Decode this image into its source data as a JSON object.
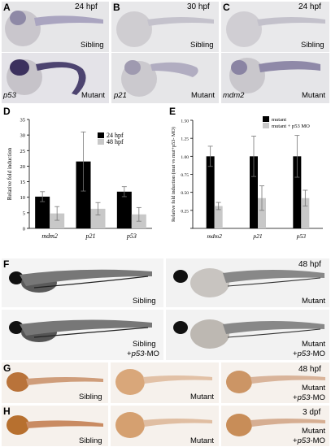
{
  "panel_letters": {
    "A": "A",
    "B": "B",
    "C": "C",
    "D": "D",
    "E": "E",
    "F": "F",
    "G": "G",
    "H": "H"
  },
  "A": {
    "top_time": "24 hpf",
    "top_label": "Sibling",
    "bottom_label": "Mutant",
    "gene": "p53"
  },
  "B": {
    "top_time": "30 hpf",
    "top_label": "Sibling",
    "bottom_label": "Mutant",
    "gene": "p21"
  },
  "C": {
    "top_time": "24 hpf",
    "top_label": "Sibling",
    "bottom_label": "Mutant",
    "gene": "mdm2"
  },
  "F": {
    "time": "48 hpf",
    "l1": "Sibling",
    "l2": "Mutant",
    "l3a": "Sibling",
    "l3b": "+p53-MO",
    "l4a": "Mutant",
    "l4b": "+p53-MO"
  },
  "G": {
    "time": "48 hpf",
    "l1": "Sibling",
    "l2": "Mutant",
    "l3a": "Mutant",
    "l3b": "+p53-MO"
  },
  "H": {
    "time": "3 dpf",
    "l1": "Sibling",
    "l2": "Mutant",
    "l3a": "Mutant",
    "l3b": "+p53-MO"
  },
  "chart_data": [
    {
      "type": "bar",
      "ylabel": "Relative fold induction",
      "categories": [
        "mdm2",
        "p21",
        "p53"
      ],
      "ylim": [
        0,
        35
      ],
      "yticks": [
        0,
        5,
        10,
        15,
        20,
        25,
        30,
        35
      ],
      "legend_position": "top-right",
      "series": [
        {
          "name": "24 hpf",
          "color": "#000000",
          "values": [
            10.2,
            21.5,
            11.8
          ],
          "errors": [
            1.6,
            9.5,
            1.6
          ]
        },
        {
          "name": "48 hpf",
          "color": "#c8c8c8",
          "values": [
            4.8,
            6.3,
            4.5
          ],
          "errors": [
            2.2,
            2.0,
            2.2
          ]
        }
      ]
    },
    {
      "type": "bar",
      "ylabel": "Relative fold induction (mut vs mut+p53- MO)",
      "categories": [
        "mdm2",
        "p21",
        "p53"
      ],
      "ylim": [
        0,
        1.5
      ],
      "yticks": [
        0,
        0.25,
        0.5,
        0.75,
        1.0,
        1.25,
        1.5
      ],
      "ytick_labels": [
        "",
        "0.25",
        "0.50",
        "0.75",
        "1.00",
        "1.25",
        "1.50"
      ],
      "legend_position": "top-right",
      "series": [
        {
          "name": "mutant",
          "color": "#000000",
          "values": [
            1.0,
            1.0,
            1.0
          ],
          "errors": [
            0.14,
            0.28,
            0.29
          ]
        },
        {
          "name": "mutant + p53 MO",
          "color": "#c8c8c8",
          "values": [
            0.31,
            0.42,
            0.42
          ],
          "errors": [
            0.05,
            0.17,
            0.11
          ]
        }
      ]
    }
  ]
}
